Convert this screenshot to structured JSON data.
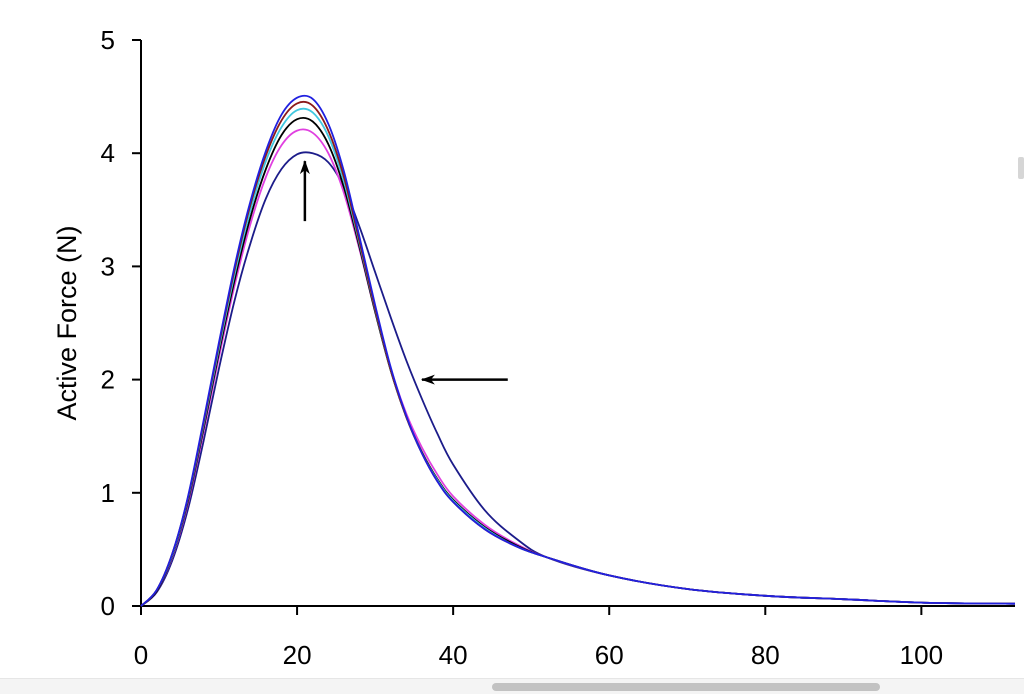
{
  "chart_data": {
    "type": "line",
    "title": "",
    "xlabel": "",
    "ylabel": "Active Force (N)",
    "xlim": [
      0,
      112
    ],
    "ylim": [
      0,
      5
    ],
    "xticks": [
      0,
      20,
      40,
      60,
      80,
      100
    ],
    "yticks": [
      0,
      1,
      2,
      3,
      4,
      5
    ],
    "grid": false,
    "legend": "none",
    "series": [
      {
        "color": "#1c1c8a",
        "x": [
          0,
          2,
          4,
          6,
          8,
          10,
          12,
          14,
          16,
          18,
          20,
          22,
          24,
          26,
          28,
          30,
          32,
          34,
          36,
          38,
          40,
          44,
          48,
          52,
          60,
          70,
          80,
          90,
          100,
          112
        ],
        "y": [
          0,
          0.12,
          0.4,
          0.85,
          1.45,
          2.1,
          2.7,
          3.2,
          3.6,
          3.86,
          3.99,
          4.0,
          3.92,
          3.7,
          3.35,
          2.95,
          2.55,
          2.17,
          1.83,
          1.52,
          1.25,
          0.85,
          0.6,
          0.43,
          0.27,
          0.15,
          0.09,
          0.06,
          0.03,
          0.02
        ]
      },
      {
        "color": "#e040e0",
        "x": [
          0,
          2,
          4,
          6,
          8,
          10,
          12,
          14,
          16,
          18,
          20,
          22,
          24,
          26,
          28,
          30,
          32,
          34,
          36,
          38,
          40,
          44,
          48,
          52,
          60,
          70,
          80,
          90,
          100,
          112
        ],
        "y": [
          0,
          0.13,
          0.43,
          0.9,
          1.53,
          2.2,
          2.83,
          3.37,
          3.79,
          4.07,
          4.2,
          4.18,
          4.0,
          3.65,
          3.15,
          2.6,
          2.1,
          1.7,
          1.4,
          1.16,
          0.97,
          0.72,
          0.55,
          0.43,
          0.27,
          0.15,
          0.09,
          0.06,
          0.03,
          0.02
        ]
      },
      {
        "color": "#000000",
        "x": [
          0,
          2,
          4,
          6,
          8,
          10,
          12,
          14,
          16,
          18,
          20,
          22,
          24,
          26,
          28,
          30,
          32,
          34,
          36,
          38,
          40,
          44,
          48,
          52,
          60,
          70,
          80,
          90,
          100,
          112
        ],
        "y": [
          0,
          0.13,
          0.44,
          0.92,
          1.56,
          2.24,
          2.88,
          3.43,
          3.86,
          4.16,
          4.3,
          4.28,
          4.08,
          3.7,
          3.17,
          2.6,
          2.08,
          1.67,
          1.36,
          1.12,
          0.94,
          0.7,
          0.54,
          0.43,
          0.27,
          0.15,
          0.09,
          0.06,
          0.03,
          0.02
        ]
      },
      {
        "color": "#40c8e0",
        "x": [
          0,
          2,
          4,
          6,
          8,
          10,
          12,
          14,
          16,
          18,
          20,
          22,
          24,
          26,
          28,
          30,
          32,
          34,
          36,
          38,
          40,
          44,
          48,
          52,
          60,
          70,
          80,
          90,
          100,
          112
        ],
        "y": [
          0,
          0.14,
          0.45,
          0.94,
          1.59,
          2.28,
          2.93,
          3.49,
          3.93,
          4.23,
          4.38,
          4.36,
          4.15,
          3.75,
          3.2,
          2.62,
          2.09,
          1.67,
          1.35,
          1.11,
          0.93,
          0.69,
          0.53,
          0.43,
          0.27,
          0.15,
          0.09,
          0.06,
          0.03,
          0.02
        ]
      },
      {
        "color": "#8b1a1a",
        "x": [
          0,
          2,
          4,
          6,
          8,
          10,
          12,
          14,
          16,
          18,
          20,
          22,
          24,
          26,
          28,
          30,
          32,
          34,
          36,
          38,
          40,
          44,
          48,
          52,
          60,
          70,
          80,
          90,
          100,
          112
        ],
        "y": [
          0,
          0.14,
          0.46,
          0.95,
          1.61,
          2.31,
          2.97,
          3.54,
          3.98,
          4.29,
          4.44,
          4.42,
          4.2,
          3.79,
          3.22,
          2.63,
          2.09,
          1.67,
          1.35,
          1.1,
          0.92,
          0.68,
          0.53,
          0.43,
          0.27,
          0.15,
          0.09,
          0.06,
          0.03,
          0.02
        ]
      },
      {
        "color": "#2020e0",
        "x": [
          0,
          2,
          4,
          6,
          8,
          10,
          12,
          14,
          16,
          18,
          20,
          22,
          24,
          26,
          28,
          30,
          32,
          34,
          36,
          38,
          40,
          44,
          48,
          52,
          60,
          70,
          80,
          90,
          100,
          112
        ],
        "y": [
          0,
          0.14,
          0.46,
          0.96,
          1.63,
          2.33,
          3.0,
          3.57,
          4.02,
          4.34,
          4.49,
          4.48,
          4.26,
          3.84,
          3.26,
          2.66,
          2.11,
          1.68,
          1.35,
          1.1,
          0.92,
          0.68,
          0.53,
          0.43,
          0.27,
          0.15,
          0.09,
          0.06,
          0.03,
          0.02
        ]
      }
    ],
    "annotations": [
      {
        "type": "arrow",
        "direction": "up",
        "tail": [
          21,
          3.4
        ],
        "head": [
          21,
          3.93
        ]
      },
      {
        "type": "arrow",
        "direction": "left",
        "tail": [
          47,
          2.0
        ],
        "head": [
          36,
          2.0
        ]
      }
    ]
  },
  "ui": {
    "scrollbar": "horizontal"
  }
}
